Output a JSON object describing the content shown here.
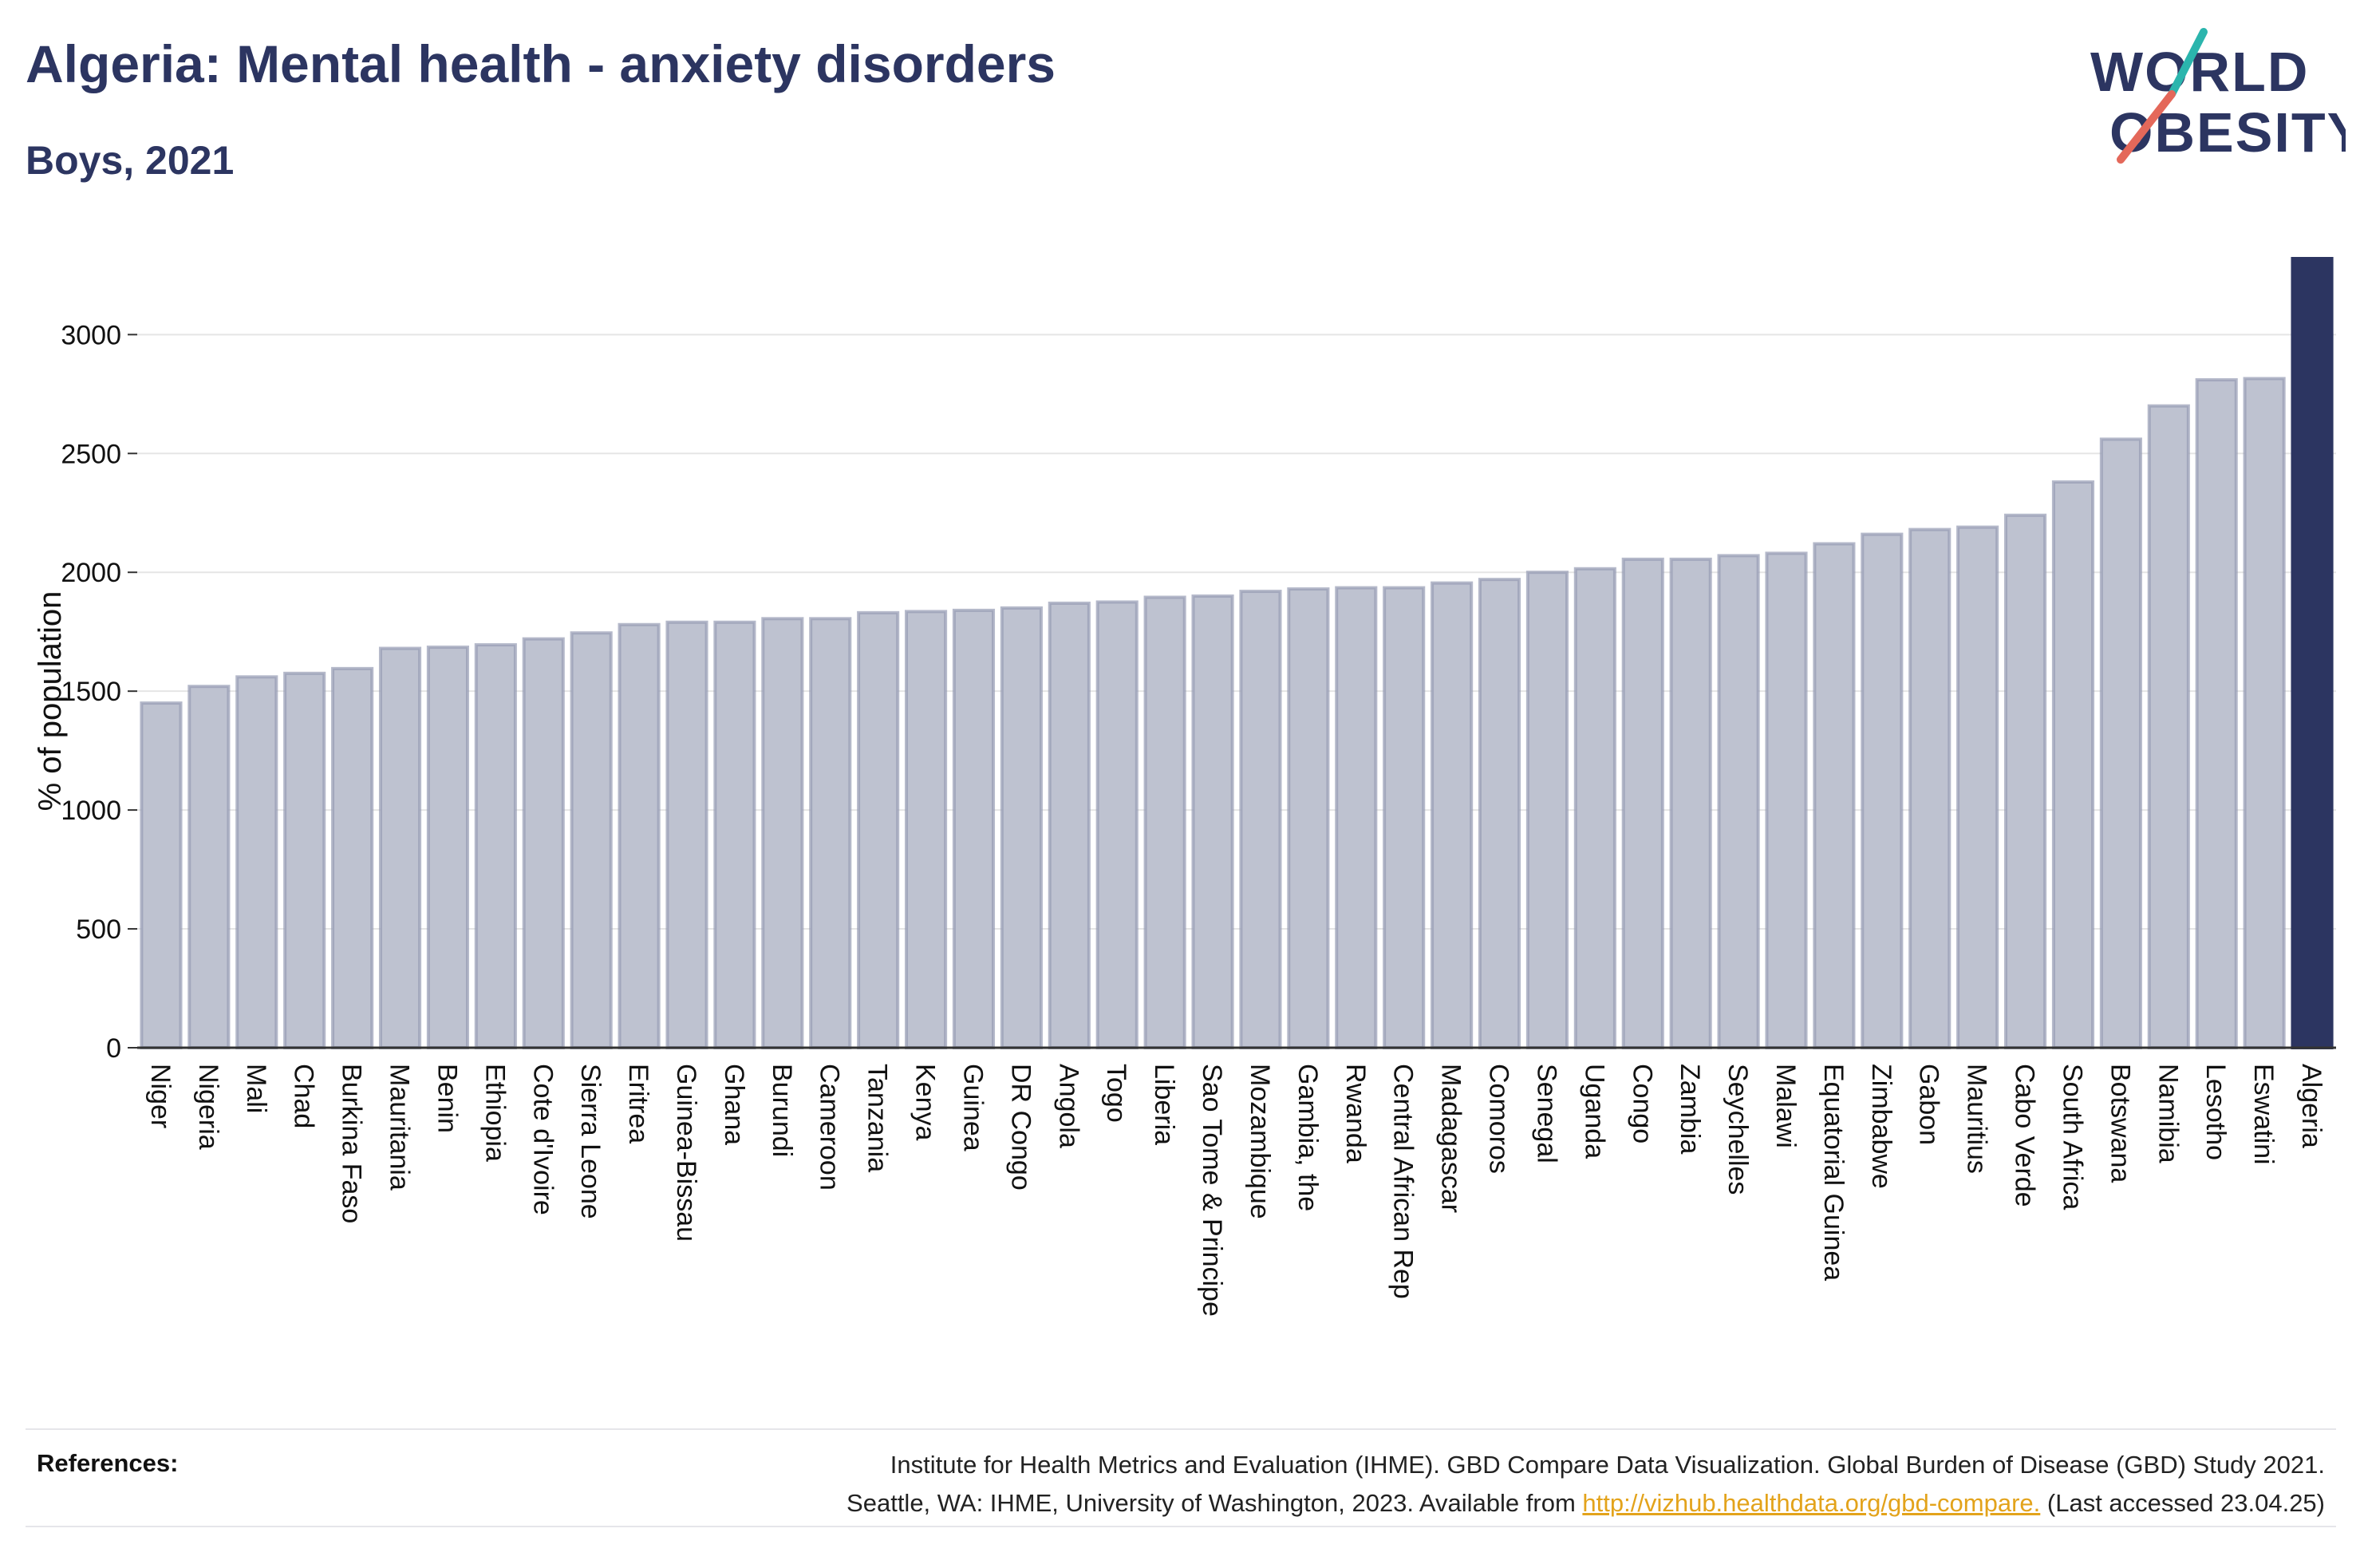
{
  "header": {
    "title": "Algeria: Mental health - anxiety disorders",
    "subtitle": "Boys, 2021"
  },
  "logo": {
    "line1": "WORLD",
    "line2": "OBESITY"
  },
  "colors": {
    "highlight": "#2c3561",
    "bar": "#bec2d0",
    "bar_stroke": "#959bb4",
    "text": "#2c3561",
    "grid": "#e5e5e5"
  },
  "chart_data": {
    "type": "bar",
    "ylabel": "% of population",
    "ylim": [
      0,
      3320
    ],
    "yticks": [
      0,
      500,
      1000,
      1500,
      2000,
      2500,
      3000
    ],
    "grid": true,
    "highlight": "Algeria",
    "categories": [
      "Niger",
      "Nigeria",
      "Mali",
      "Chad",
      "Burkina Faso",
      "Mauritania",
      "Benin",
      "Ethiopia",
      "Cote d'Ivoire",
      "Sierra Leone",
      "Eritrea",
      "Guinea-Bissau",
      "Ghana",
      "Burundi",
      "Cameroon",
      "Tanzania",
      "Kenya",
      "Guinea",
      "DR Congo",
      "Angola",
      "Togo",
      "Liberia",
      "Sao Tome & Principe",
      "Mozambique",
      "Gambia, the",
      "Rwanda",
      "Central African Rep",
      "Madagascar",
      "Comoros",
      "Senegal",
      "Uganda",
      "Congo",
      "Zambia",
      "Seychelles",
      "Malawi",
      "Equatorial Guinea",
      "Zimbabwe",
      "Gabon",
      "Mauritius",
      "Cabo Verde",
      "South Africa",
      "Botswana",
      "Namibia",
      "Lesotho",
      "Eswatini",
      "Algeria"
    ],
    "values": [
      1450,
      1520,
      1560,
      1575,
      1595,
      1680,
      1685,
      1695,
      1720,
      1745,
      1780,
      1790,
      1790,
      1805,
      1805,
      1830,
      1835,
      1840,
      1850,
      1870,
      1875,
      1895,
      1900,
      1920,
      1930,
      1935,
      1935,
      1955,
      1970,
      2000,
      2015,
      2055,
      2055,
      2070,
      2080,
      2120,
      2160,
      2180,
      2190,
      2240,
      2380,
      2560,
      2700,
      2810,
      2815,
      3320
    ]
  },
  "references": {
    "label": "References:",
    "line1": "Institute for Health Metrics and Evaluation (IHME). GBD Compare Data Visualization. Global Burden of Disease (GBD) Study 2021.",
    "line2_prefix": "Seattle, WA: IHME, University of Washington, 2023. Available from ",
    "link": "http://vizhub.healthdata.org/gbd-compare.",
    "line2_suffix": " (Last accessed 23.04.25)"
  }
}
